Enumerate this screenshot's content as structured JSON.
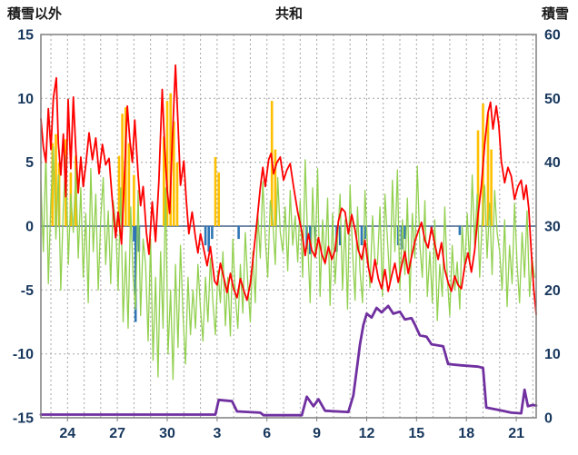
{
  "header": {
    "title": "共和",
    "left_axis_title": "積雪以外",
    "right_axis_title": "積雪"
  },
  "chart_data": {
    "type": "line",
    "title": "共和",
    "x_range": [
      0,
      29.8
    ],
    "x_ticks": {
      "positions": [
        1.6,
        4.6,
        7.6,
        10.6,
        13.6,
        16.6,
        19.6,
        22.6,
        25.6,
        28.6
      ],
      "labels": [
        "24",
        "27",
        "30",
        "3",
        "6",
        "9",
        "12",
        "15",
        "18",
        "21"
      ]
    },
    "left_axis": {
      "label": "積雪以外",
      "min": -15,
      "max": 15,
      "ticks": [
        15,
        10,
        5,
        0,
        -5,
        -10,
        -15
      ]
    },
    "right_axis": {
      "label": "積雪",
      "min": 0,
      "max": 60,
      "ticks": [
        60,
        50,
        40,
        30,
        20,
        10,
        0
      ]
    },
    "grid": {
      "color": "#a6a6a6",
      "dash": "2,3",
      "x_start": 0.6,
      "x_step": 1.0
    },
    "zero_line_color": "#44618c",
    "frame_color": "#7f7f7f",
    "tick_label_color": "#17375d",
    "series": [
      {
        "name": "sunshine-orange",
        "type": "bar",
        "axis": "left",
        "color": "#FFC000",
        "bar_width": 2.6,
        "bars": [
          [
            0.7,
            6.5
          ],
          [
            0.9,
            7.2
          ],
          [
            1.1,
            5.0
          ],
          [
            1.5,
            6.8
          ],
          [
            1.8,
            4.2
          ],
          [
            2.1,
            5.5
          ],
          [
            4.7,
            5.5
          ],
          [
            4.9,
            8.8
          ],
          [
            5.1,
            9.3
          ],
          [
            5.3,
            6.5
          ],
          [
            5.6,
            4.0
          ],
          [
            7.4,
            7.0
          ],
          [
            7.6,
            9.8
          ],
          [
            7.8,
            10.4
          ],
          [
            8.0,
            8.2
          ],
          [
            8.2,
            5.0
          ],
          [
            10.5,
            5.4
          ],
          [
            10.7,
            4.2
          ],
          [
            13.9,
            9.8
          ],
          [
            14.1,
            6.0
          ],
          [
            26.3,
            7.5
          ],
          [
            26.6,
            9.6
          ],
          [
            26.9,
            8.8
          ],
          [
            27.1,
            6.0
          ]
        ]
      },
      {
        "name": "precipitation-blue",
        "type": "bar",
        "axis": "left",
        "color": "#2E75B6",
        "bar_width": 2.6,
        "bars": [
          [
            5.6,
            -1.2
          ],
          [
            5.7,
            -7.5
          ],
          [
            5.9,
            -2.0
          ],
          [
            9.9,
            -1.5
          ],
          [
            10.1,
            -2.0
          ],
          [
            10.3,
            -1.0
          ],
          [
            11.9,
            -1.0
          ],
          [
            16.0,
            -1.8
          ],
          [
            16.2,
            -2.2
          ],
          [
            16.5,
            -1.2
          ],
          [
            17.8,
            -2.0
          ],
          [
            18.0,
            -1.5
          ],
          [
            19.3,
            -1.5
          ],
          [
            19.5,
            -1.0
          ],
          [
            21.5,
            -1.5
          ],
          [
            21.7,
            -1.8
          ],
          [
            21.9,
            -1.0
          ],
          [
            23.5,
            -0.6
          ],
          [
            25.2,
            -0.7
          ]
        ]
      },
      {
        "name": "wind-green",
        "type": "line",
        "axis": "left",
        "color": "#92D050",
        "width": 1.3,
        "x_start": 0,
        "x_step": 0.15,
        "values": [
          3.5,
          -2.0,
          5.8,
          -4.5,
          2.0,
          6.2,
          -1.0,
          4.0,
          -5.0,
          1.5,
          5.5,
          -3.0,
          2.5,
          -0.5,
          4.5,
          -2.5,
          3.0,
          -4.0,
          1.0,
          -6.0,
          4.5,
          -2.0,
          2.5,
          -5.0,
          0.5,
          3.8,
          -3.0,
          1.2,
          -4.5,
          2.0,
          0.0,
          -5.0,
          3.0,
          -7.5,
          -2.0,
          -8.0,
          1.5,
          -4.0,
          -6.5,
          2.8,
          -7.0,
          -1.0,
          -3.0,
          -9.0,
          -1.0,
          -10.5,
          -4.0,
          -11.8,
          -2.0,
          -8.0,
          3.0,
          -10.0,
          -5.0,
          -12.0,
          -3.0,
          -9.5,
          -1.5,
          -7.0,
          -10.8,
          -4.0,
          -8.5,
          -5.0,
          -8.0,
          -3.0,
          -6.5,
          -9.0,
          -4.0,
          -7.5,
          -2.5,
          -6.0,
          -8.5,
          -3.5,
          -6.0,
          -2.0,
          -7.8,
          -4.0,
          -8.6,
          -1.0,
          -5.5,
          -8.0,
          -3.0,
          -6.8,
          -0.5,
          -4.5,
          -7.5,
          -2.0,
          -6.0,
          1.0,
          -2.5,
          3.5,
          -1.0,
          -4.0,
          2.0,
          0.5,
          -3.0,
          3.8,
          -0.5,
          -2.0,
          1.5,
          -3.5,
          2.8,
          -1.5,
          0.8,
          -2.8,
          2.0,
          -4.0,
          5.2,
          -1.0,
          -6.0,
          3.0,
          -2.5,
          4.5,
          -5.5,
          0.5,
          -3.0,
          2.2,
          -6.2,
          1.0,
          -4.5,
          -1.0,
          2.5,
          -5.0,
          0.5,
          -6.5,
          3.2,
          -2.0,
          -5.8,
          1.5,
          -3.5,
          -6.0,
          2.8,
          -1.5,
          -4.8,
          0.8,
          -2.8,
          -3.0,
          1.5,
          -5.5,
          2.5,
          -1.0,
          -4.5,
          3.6,
          -2.0,
          4.4,
          -5.0,
          0.5,
          -3.8,
          2.2,
          -6.0,
          1.0,
          -2.5,
          4.7,
          -1.5,
          -4.0,
          2.0,
          -5.5,
          -2.0,
          -6.0,
          0.5,
          -7.4,
          -3.0,
          -5.5,
          1.5,
          -4.0,
          -7.0,
          -1.5,
          -5.0,
          -2.8,
          -6.5,
          0.0,
          -3.5,
          1.0,
          -3.0,
          4.0,
          -1.5,
          2.5,
          -4.0,
          0.5,
          3.2,
          -2.5,
          1.8,
          -3.8,
          2.8,
          -0.5,
          -2.0,
          -5.0,
          0.5,
          -6.3,
          -1.5,
          -4.5,
          1.8,
          -3.0,
          -6.0,
          -0.5,
          -4.0,
          1.2,
          -5.5,
          -2.5,
          -4.0
        ]
      },
      {
        "name": "temperature-red",
        "type": "line",
        "axis": "left",
        "color": "#FF0000",
        "width": 1.8,
        "points": [
          [
            0,
            8.4
          ],
          [
            0.15,
            6.2
          ],
          [
            0.3,
            5.0
          ],
          [
            0.45,
            9.2
          ],
          [
            0.6,
            6.0
          ],
          [
            0.75,
            10.0
          ],
          [
            0.93,
            11.6
          ],
          [
            1.05,
            6.5
          ],
          [
            1.2,
            4.0
          ],
          [
            1.35,
            7.2
          ],
          [
            1.5,
            2.3
          ],
          [
            1.64,
            9.9
          ],
          [
            1.8,
            4.5
          ],
          [
            1.95,
            10.1
          ],
          [
            2.1,
            6.0
          ],
          [
            2.25,
            2.6
          ],
          [
            2.4,
            5.4
          ],
          [
            2.55,
            3.1
          ],
          [
            2.7,
            4.8
          ],
          [
            2.9,
            7.3
          ],
          [
            3.1,
            5.2
          ],
          [
            3.3,
            6.9
          ],
          [
            3.5,
            4.1
          ],
          [
            3.7,
            6.4
          ],
          [
            3.9,
            4.8
          ],
          [
            4.1,
            5.3
          ],
          [
            4.3,
            2.0
          ],
          [
            4.5,
            -0.9
          ],
          [
            4.65,
            1.1
          ],
          [
            4.85,
            -1.4
          ],
          [
            5.0,
            3.0
          ],
          [
            5.2,
            9.4
          ],
          [
            5.35,
            6.8
          ],
          [
            5.5,
            5.0
          ],
          [
            5.65,
            8.3
          ],
          [
            5.85,
            4.0
          ],
          [
            6.0,
            1.6
          ],
          [
            6.15,
            3.1
          ],
          [
            6.35,
            -0.5
          ],
          [
            6.5,
            -2.2
          ],
          [
            6.7,
            1.9
          ],
          [
            6.9,
            -1.2
          ],
          [
            7.1,
            3.5
          ],
          [
            7.3,
            10.7
          ],
          [
            7.45,
            6.0
          ],
          [
            7.6,
            2.8
          ],
          [
            7.75,
            1.0
          ],
          [
            7.9,
            6.5
          ],
          [
            8.1,
            12.6
          ],
          [
            8.25,
            8.0
          ],
          [
            8.4,
            3.2
          ],
          [
            8.6,
            5.1
          ],
          [
            8.75,
            2.0
          ],
          [
            8.9,
            -0.6
          ],
          [
            9.1,
            1.1
          ],
          [
            9.3,
            -0.9
          ],
          [
            9.45,
            -2.1
          ],
          [
            9.6,
            -0.6
          ],
          [
            9.8,
            -1.8
          ],
          [
            10.0,
            -3.1
          ],
          [
            10.2,
            -1.6
          ],
          [
            10.45,
            -4.3
          ],
          [
            10.6,
            -4.6
          ],
          [
            10.8,
            -2.9
          ],
          [
            11.0,
            -4.0
          ],
          [
            11.2,
            -5.2
          ],
          [
            11.4,
            -3.7
          ],
          [
            11.6,
            -4.9
          ],
          [
            11.8,
            -5.6
          ],
          [
            12.0,
            -4.1
          ],
          [
            12.2,
            -5.0
          ],
          [
            12.4,
            -5.8
          ],
          [
            12.6,
            -4.5
          ],
          [
            12.8,
            -2.1
          ],
          [
            13.0,
            0.4
          ],
          [
            13.2,
            3.0
          ],
          [
            13.35,
            4.6
          ],
          [
            13.5,
            3.1
          ],
          [
            13.7,
            5.2
          ],
          [
            13.85,
            5.7
          ],
          [
            14.0,
            4.1
          ],
          [
            14.2,
            5.0
          ],
          [
            14.4,
            5.4
          ],
          [
            14.6,
            3.6
          ],
          [
            14.8,
            4.4
          ],
          [
            15.0,
            4.9
          ],
          [
            15.2,
            3.1
          ],
          [
            15.45,
            1.1
          ],
          [
            15.7,
            -0.4
          ],
          [
            15.9,
            -2.3
          ],
          [
            16.1,
            -0.6
          ],
          [
            16.3,
            -1.9
          ],
          [
            16.5,
            -2.4
          ],
          [
            16.7,
            -0.9
          ],
          [
            16.9,
            -2.2
          ],
          [
            17.1,
            -2.9
          ],
          [
            17.3,
            -1.6
          ],
          [
            17.5,
            -2.6
          ],
          [
            17.7,
            -1.9
          ],
          [
            17.9,
            0.4
          ],
          [
            18.1,
            1.4
          ],
          [
            18.3,
            1.1
          ],
          [
            18.5,
            -0.6
          ],
          [
            18.7,
            0.9
          ],
          [
            18.9,
            -0.3
          ],
          [
            19.1,
            -1.9
          ],
          [
            19.3,
            -2.6
          ],
          [
            19.5,
            -1.1
          ],
          [
            19.7,
            -3.2
          ],
          [
            19.9,
            -4.4
          ],
          [
            20.1,
            -2.6
          ],
          [
            20.3,
            -4.1
          ],
          [
            20.5,
            -4.9
          ],
          [
            20.7,
            -3.4
          ],
          [
            20.9,
            -5.1
          ],
          [
            21.1,
            -3.9
          ],
          [
            21.3,
            -2.9
          ],
          [
            21.5,
            -4.4
          ],
          [
            21.7,
            -3.1
          ],
          [
            21.9,
            -2.0
          ],
          [
            22.1,
            -3.7
          ],
          [
            22.3,
            -2.4
          ],
          [
            22.5,
            -1.2
          ],
          [
            22.7,
            -0.4
          ],
          [
            22.9,
            0.3
          ],
          [
            23.1,
            -1.1
          ],
          [
            23.3,
            -1.7
          ],
          [
            23.5,
            -0.1
          ],
          [
            23.7,
            -1.4
          ],
          [
            23.9,
            -2.6
          ],
          [
            24.1,
            -1.3
          ],
          [
            24.3,
            -3.4
          ],
          [
            24.5,
            -4.4
          ],
          [
            24.7,
            -5.1
          ],
          [
            24.9,
            -3.9
          ],
          [
            25.1,
            -4.6
          ],
          [
            25.3,
            -4.9
          ],
          [
            25.5,
            -3.1
          ],
          [
            25.7,
            -2.1
          ],
          [
            25.9,
            -3.6
          ],
          [
            26.1,
            -1.9
          ],
          [
            26.3,
            0.9
          ],
          [
            26.5,
            3.1
          ],
          [
            26.7,
            6.4
          ],
          [
            26.9,
            8.9
          ],
          [
            27.05,
            9.7
          ],
          [
            27.2,
            7.6
          ],
          [
            27.4,
            9.4
          ],
          [
            27.55,
            7.9
          ],
          [
            27.7,
            5.1
          ],
          [
            27.9,
            3.4
          ],
          [
            28.1,
            4.6
          ],
          [
            28.3,
            3.9
          ],
          [
            28.5,
            2.1
          ],
          [
            28.7,
            3.1
          ],
          [
            28.9,
            3.6
          ],
          [
            29.05,
            2.1
          ],
          [
            29.2,
            3.2
          ],
          [
            29.35,
            1.4
          ],
          [
            29.5,
            -1.9
          ],
          [
            29.65,
            -4.9
          ],
          [
            29.8,
            -6.9
          ]
        ]
      },
      {
        "name": "snow-depth-purple",
        "type": "line",
        "axis": "right",
        "color": "#7030A0",
        "width": 2.8,
        "points": [
          [
            0,
            0.5
          ],
          [
            10.5,
            0.5
          ],
          [
            10.7,
            2.8
          ],
          [
            11.5,
            2.6
          ],
          [
            11.8,
            1.0
          ],
          [
            13.2,
            0.8
          ],
          [
            13.4,
            0.4
          ],
          [
            15.7,
            0.4
          ],
          [
            16.0,
            3.3
          ],
          [
            16.4,
            1.8
          ],
          [
            16.7,
            2.9
          ],
          [
            17.1,
            1.1
          ],
          [
            18.5,
            0.9
          ],
          [
            18.8,
            3.5
          ],
          [
            19.0,
            7.5
          ],
          [
            19.2,
            11.5
          ],
          [
            19.4,
            14.5
          ],
          [
            19.6,
            16.3
          ],
          [
            19.9,
            15.7
          ],
          [
            20.2,
            17.2
          ],
          [
            20.5,
            16.5
          ],
          [
            20.9,
            17.5
          ],
          [
            21.2,
            16.3
          ],
          [
            21.6,
            16.6
          ],
          [
            21.9,
            15.4
          ],
          [
            22.3,
            15.6
          ],
          [
            22.5,
            14.6
          ],
          [
            22.8,
            12.9
          ],
          [
            23.2,
            12.7
          ],
          [
            23.5,
            11.5
          ],
          [
            24.2,
            11.2
          ],
          [
            24.5,
            8.4
          ],
          [
            25.3,
            8.2
          ],
          [
            26.3,
            8.0
          ],
          [
            26.6,
            7.8
          ],
          [
            26.8,
            1.6
          ],
          [
            27.6,
            1.2
          ],
          [
            28.3,
            0.8
          ],
          [
            28.9,
            0.7
          ],
          [
            29.1,
            4.4
          ],
          [
            29.3,
            1.8
          ],
          [
            29.6,
            2.0
          ],
          [
            29.8,
            1.9
          ]
        ]
      }
    ]
  }
}
